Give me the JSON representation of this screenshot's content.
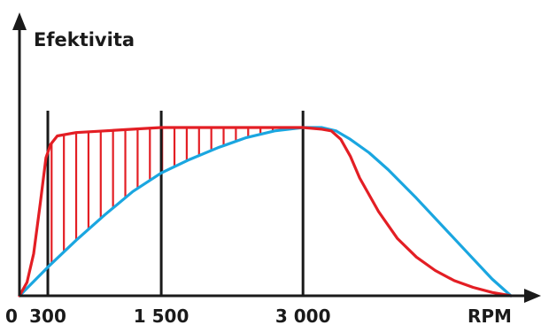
{
  "chart_data": {
    "type": "line",
    "ylabel": "Efektivita",
    "xlabel": "RPM",
    "x_ticks": [
      {
        "value": 0,
        "label": "0"
      },
      {
        "value": 300,
        "label": "300"
      },
      {
        "value": 1500,
        "label": "1 500"
      },
      {
        "value": 3000,
        "label": "3 000"
      }
    ],
    "vlines": [
      300,
      1500,
      3000
    ],
    "xlim": [
      0,
      5200
    ],
    "ylim": [
      0,
      1.1
    ],
    "series": [
      {
        "color": "#e31e24",
        "x": [
          0,
          80,
          150,
          220,
          280,
          330,
          400,
          600,
          900,
          1200,
          1500,
          2000,
          2500,
          3000,
          3200,
          3300,
          3400,
          3500,
          3600,
          3800,
          4000,
          4200,
          4400,
          4600,
          4800,
          5000,
          5200
        ],
        "y": [
          0,
          0.08,
          0.25,
          0.55,
          0.82,
          0.9,
          0.95,
          0.97,
          0.98,
          0.99,
          1.0,
          1.0,
          1.0,
          1.0,
          0.99,
          0.98,
          0.93,
          0.83,
          0.7,
          0.5,
          0.34,
          0.23,
          0.15,
          0.09,
          0.05,
          0.02,
          0
        ]
      },
      {
        "color": "#1aa6e0",
        "x": [
          0,
          300,
          600,
          900,
          1200,
          1500,
          1800,
          2100,
          2400,
          2700,
          3000,
          3200,
          3350,
          3500,
          3700,
          3900,
          4200,
          4500,
          4800,
          5000,
          5200
        ],
        "y": [
          0,
          0.17,
          0.33,
          0.48,
          0.62,
          0.73,
          0.81,
          0.88,
          0.94,
          0.98,
          1.0,
          1.0,
          0.98,
          0.93,
          0.85,
          0.75,
          0.58,
          0.4,
          0.22,
          0.1,
          0
        ]
      }
    ],
    "hatch_region": {
      "color": "#e31e24",
      "x_from": 300,
      "x_to": 3000,
      "step": 130
    }
  }
}
